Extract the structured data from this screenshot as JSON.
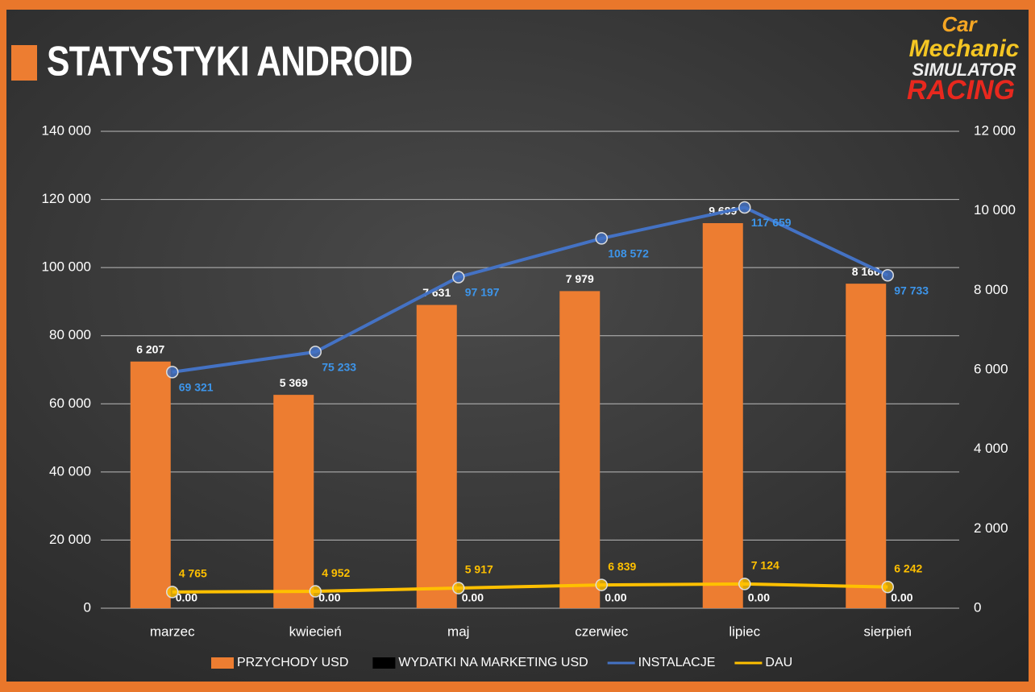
{
  "logo": [
    "Car",
    "Mechanic",
    "SIMULATOR",
    "RACING"
  ],
  "chart_data": {
    "type": "bar",
    "title": "STATYSTYKI ANDROID",
    "categories": [
      "marzec",
      "kwiecień",
      "maj",
      "czerwiec",
      "lipiec",
      "sierpień"
    ],
    "ylim": [
      0,
      140000
    ],
    "yticks": [
      {
        "value": 0,
        "label": "0"
      },
      {
        "value": 20000,
        "label": "20 000"
      },
      {
        "value": 40000,
        "label": "40 000"
      },
      {
        "value": 60000,
        "label": "60 000"
      },
      {
        "value": 80000,
        "label": "80 000"
      },
      {
        "value": 100000,
        "label": "100 000"
      },
      {
        "value": 120000,
        "label": "120 000"
      },
      {
        "value": 140000,
        "label": "140 000"
      }
    ],
    "y2lim": [
      0,
      12000
    ],
    "y2ticks": [
      {
        "value": 0,
        "label": "0"
      },
      {
        "value": 2000,
        "label": "2 000"
      },
      {
        "value": 4000,
        "label": "4 000"
      },
      {
        "value": 6000,
        "label": "6 000"
      },
      {
        "value": 8000,
        "label": "8 000"
      },
      {
        "value": 10000,
        "label": "10 000"
      },
      {
        "value": 12000,
        "label": "12 000"
      }
    ],
    "grid": true,
    "series": [
      {
        "name": "PRZYCHODY USD",
        "type": "bar",
        "axis": "y2",
        "color": "#ED7D31",
        "values": [
          6207,
          5369,
          7631,
          7979,
          9689,
          8166
        ],
        "value_labels": [
          "6 207",
          "5 369",
          "7 631",
          "7 979",
          "9 689",
          "8 166"
        ]
      },
      {
        "name": "WYDATKI NA MARKETING USD",
        "type": "bar",
        "axis": "y2",
        "color": "#000000",
        "values": [
          0,
          0,
          0,
          0,
          0,
          0
        ],
        "value_labels": [
          "0.00",
          "0.00",
          "0.00",
          "0.00",
          "0.00",
          "0.00"
        ]
      },
      {
        "name": "INSTALACJE",
        "type": "line",
        "color": "#4472C4",
        "values": [
          69321,
          75233,
          97197,
          108572,
          117659,
          97733
        ],
        "value_labels": [
          "69 321",
          "75 233",
          "97 197",
          "108 572",
          "117 659",
          "97 733"
        ]
      },
      {
        "name": "DAU",
        "type": "line",
        "color": "#FFC000",
        "values": [
          4765,
          4952,
          5917,
          6839,
          7124,
          6242
        ],
        "value_labels": [
          "4 765",
          "4 952",
          "5 917",
          "6 839",
          "7 124",
          "6 242"
        ]
      }
    ]
  }
}
